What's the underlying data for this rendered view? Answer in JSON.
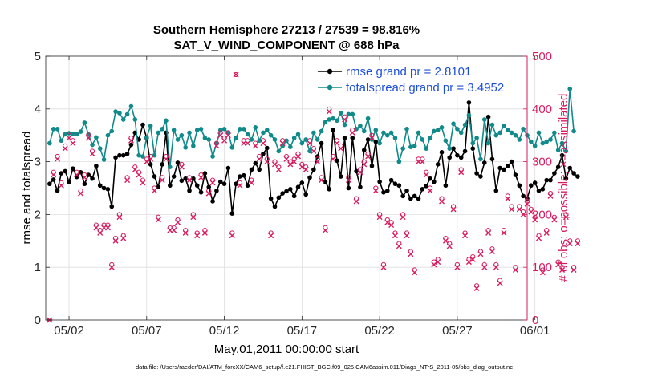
{
  "chart_data": {
    "type": "line",
    "title_line1": "Southern Hemisphere 27213 / 27539 = 98.816%",
    "title_line2": "SAT_V_WIND_COMPONENT @ 688 hPa",
    "xlabel": "May.01,2011 00:00:00 start",
    "ylabel_left": "rmse and totalspread",
    "ylabel_right": "# of obs: o=possible; ×=assimilated",
    "footnote": "data file: /Users/raeder/DAI/ATM_forcXX/CAM6_setup/f.e21.FHIST_BGC.f09_025.CAM6assim.011/Diags_NTrS_2011-05/obs_diag_output.nc",
    "x_range_days": [
      0.5,
      31.5
    ],
    "ylim_left": [
      0,
      5
    ],
    "ylim_right": [
      0,
      500
    ],
    "yticks_left": [
      0,
      1,
      2,
      3,
      4,
      5
    ],
    "yticks_right": [
      0,
      100,
      200,
      300,
      400,
      500
    ],
    "xticks": [
      {
        "day": 2,
        "label": "05/02"
      },
      {
        "day": 7,
        "label": "05/07"
      },
      {
        "day": 12,
        "label": "05/12"
      },
      {
        "day": 17,
        "label": "05/17"
      },
      {
        "day": 22,
        "label": "05/22"
      },
      {
        "day": 27,
        "label": "05/27"
      },
      {
        "day": 32,
        "label": "06/01"
      }
    ],
    "time_start_day": 0.75,
    "time_step_day": 0.25,
    "series": [
      {
        "name": "rmse",
        "legend": "rmse grand pr = 2.8101",
        "color": "#000000",
        "axis": "left",
        "values": [
          2.58,
          2.66,
          2.45,
          2.78,
          2.82,
          2.62,
          2.87,
          2.71,
          2.8,
          2.58,
          2.75,
          2.68,
          2.92,
          2.55,
          2.5,
          2.48,
          2.15,
          3.08,
          3.12,
          3.12,
          3.15,
          3.32,
          3.55,
          3.42,
          3.7,
          3.45,
          2.95,
          2.72,
          2.52,
          2.95,
          3.55,
          2.55,
          2.72,
          2.98,
          2.64,
          2.68,
          2.45,
          2.68,
          2.55,
          2.42,
          2.78,
          2.52,
          2.25,
          2.45,
          2.62,
          2.58,
          2.88,
          2.02,
          2.58,
          2.72,
          2.74,
          2.55,
          2.85,
          2.97,
          2.85,
          3.15,
          3.26,
          2.3,
          2.15,
          2.32,
          2.4,
          2.44,
          2.48,
          2.35,
          2.52,
          2.6,
          2.38,
          2.7,
          2.85,
          3.1,
          3.35,
          2.62,
          2.48,
          3.6,
          3.02,
          2.72,
          3.45,
          2.5,
          3.45,
          2.82,
          2.52,
          3.22,
          3.42,
          2.92,
          3.38,
          2.62,
          2.42,
          2.45,
          2.65,
          2.58,
          2.55,
          2.35,
          2.45,
          2.3,
          2.35,
          2.3,
          2.48,
          2.54,
          2.68,
          2.62,
          2.95,
          3.18,
          2.55,
          3.08,
          3.25,
          3.12,
          3.08,
          3.2,
          4.12,
          3.25,
          2.78,
          2.72,
          2.98,
          3.85,
          3.05,
          2.45,
          2.88,
          2.85,
          2.92,
          3.0,
          2.75,
          2.55,
          2.35,
          2.3,
          2.55,
          2.6,
          2.45,
          2.48,
          2.65,
          2.65,
          2.78,
          2.9,
          3.12,
          2.68,
          2.88,
          2.78,
          2.72
        ]
      },
      {
        "name": "totalspread",
        "legend": "totalspread grand pr = 3.4952",
        "color": "#118a8a",
        "axis": "left",
        "values": [
          3.35,
          3.62,
          3.62,
          3.4,
          3.52,
          3.54,
          3.53,
          3.52,
          3.57,
          3.74,
          3.52,
          3.32,
          3.46,
          3.25,
          3.04,
          3.5,
          3.58,
          3.95,
          3.92,
          3.8,
          3.9,
          4.05,
          3.8,
          3.12,
          3.1,
          3.46,
          3.68,
          3.12,
          3.55,
          3.62,
          3.78,
          2.9,
          3.6,
          3.42,
          3.5,
          3.27,
          3.55,
          3.3,
          3.6,
          3.62,
          3.45,
          3.42,
          3.1,
          3.35,
          3.6,
          3.62,
          3.55,
          3.27,
          3.45,
          3.62,
          3.62,
          3.52,
          3.42,
          3.65,
          3.4,
          3.55,
          3.6,
          3.5,
          3.42,
          3.2,
          3.3,
          3.4,
          3.28,
          3.45,
          3.52,
          3.35,
          3.42,
          3.2,
          3.55,
          3.42,
          3.58,
          3.75,
          3.8,
          3.82,
          3.78,
          3.92,
          3.7,
          3.9,
          3.9,
          3.62,
          3.68,
          3.58,
          3.82,
          3.42,
          3.6,
          3.35,
          3.55,
          3.5,
          3.55,
          3.45,
          3.0,
          3.25,
          3.62,
          3.28,
          3.3,
          3.55,
          3.42,
          3.25,
          3.45,
          3.58,
          3.6,
          3.65,
          3.4,
          3.25,
          3.72,
          3.62,
          3.55,
          3.7,
          3.88,
          3.35,
          3.45,
          3.05,
          3.8,
          3.35,
          3.7,
          3.5,
          3.55,
          3.68,
          3.6,
          3.55,
          3.5,
          3.42,
          3.62,
          3.5,
          3.38,
          3.3,
          3.55,
          3.35,
          3.38,
          3.42,
          3.55,
          3.22,
          3.35,
          3.2,
          4.38,
          3.58
        ]
      },
      {
        "name": "obs possible",
        "marker": "o",
        "color": "#d81b60",
        "axis": "right",
        "values": [
          0,
          280,
          310,
          260,
          330,
          350,
          340,
          280,
          245,
          275,
          350,
          320,
          180,
          170,
          180,
          180,
          105,
          155,
          200,
          160,
          270,
          345,
          290,
          280,
          265,
          305,
          310,
          250,
          195,
          270,
          310,
          175,
          175,
          190,
          295,
          170,
          270,
          200,
          165,
          275,
          170,
          245,
          265,
          335,
          355,
          345,
          355,
          165,
          465,
          260,
          340,
          340,
          265,
          335,
          310,
          340,
          305,
          165,
          300,
          290,
          340,
          310,
          300,
          305,
          315,
          295,
          290,
          340,
          325,
          305,
          270,
          175,
          400,
          310,
          340,
          330,
          385,
          270,
          360,
          230,
          285,
          300,
          315,
          350,
          250,
          200,
          105,
          190,
          185,
          165,
          145,
          200,
          165,
          130,
          95,
          305,
          305,
          280,
          250,
          110,
          115,
          230,
          155,
          145,
          215,
          105,
          285,
          165,
          115,
          120,
          65,
          130,
          105,
          170,
          135,
          105,
          75,
          170,
          235,
          215,
          100,
          215,
          205,
          225,
          210,
          195,
          160,
          95,
          170,
          240,
          195,
          110,
          100,
          200,
          150,
          100,
          150
        ]
      },
      {
        "name": "obs assimilated",
        "marker": "x",
        "color": "#d81b60",
        "axis": "right",
        "values": [
          0,
          275,
          305,
          255,
          325,
          345,
          335,
          275,
          240,
          270,
          345,
          315,
          175,
          165,
          175,
          175,
          100,
          150,
          195,
          155,
          265,
          340,
          285,
          275,
          260,
          300,
          305,
          245,
          190,
          265,
          305,
          170,
          170,
          185,
          290,
          165,
          265,
          195,
          160,
          270,
          165,
          240,
          260,
          330,
          350,
          340,
          350,
          160,
          465,
          255,
          335,
          335,
          260,
          330,
          305,
          335,
          300,
          160,
          295,
          285,
          335,
          305,
          295,
          300,
          310,
          290,
          285,
          335,
          320,
          300,
          265,
          170,
          395,
          305,
          335,
          325,
          380,
          265,
          355,
          225,
          280,
          295,
          310,
          345,
          245,
          195,
          100,
          185,
          180,
          160,
          140,
          195,
          160,
          125,
          90,
          300,
          300,
          275,
          245,
          105,
          110,
          225,
          150,
          140,
          210,
          100,
          280,
          160,
          110,
          115,
          60,
          125,
          100,
          165,
          130,
          100,
          70,
          165,
          230,
          210,
          95,
          210,
          200,
          220,
          205,
          190,
          155,
          90,
          165,
          235,
          190,
          105,
          95,
          195,
          145,
          95,
          145
        ]
      }
    ]
  }
}
